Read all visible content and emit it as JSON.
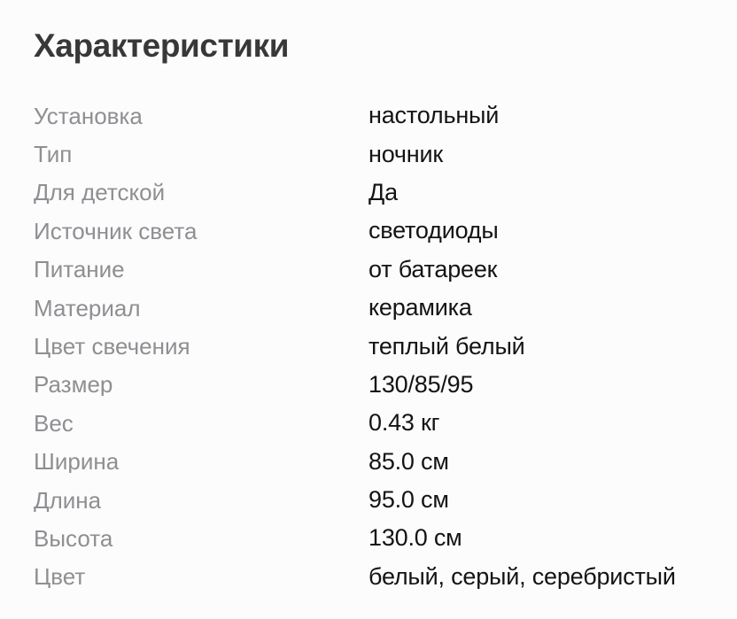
{
  "colors": {
    "background": "#fcfcfc",
    "title": "#383838",
    "label": "#8f8f93",
    "value": "#141414"
  },
  "section": {
    "title": "Характеристики"
  },
  "specs": {
    "rows": [
      {
        "label": "Установка",
        "value": "настольный"
      },
      {
        "label": "Тип",
        "value": "ночник"
      },
      {
        "label": "Для детской",
        "value": "Да"
      },
      {
        "label": "Источник света",
        "value": "светодиоды"
      },
      {
        "label": "Питание",
        "value": "от батареек"
      },
      {
        "label": "Материал",
        "value": "керамика"
      },
      {
        "label": "Цвет свечения",
        "value": "теплый белый"
      },
      {
        "label": "Размер",
        "value": "130/85/95"
      },
      {
        "label": "Вес",
        "value": "0.43 кг"
      },
      {
        "label": "Ширина",
        "value": "85.0 см"
      },
      {
        "label": "Длина",
        "value": "95.0 см"
      },
      {
        "label": "Высота",
        "value": "130.0 см"
      },
      {
        "label": "Цвет",
        "value": "белый, серый, серебристый"
      }
    ]
  }
}
